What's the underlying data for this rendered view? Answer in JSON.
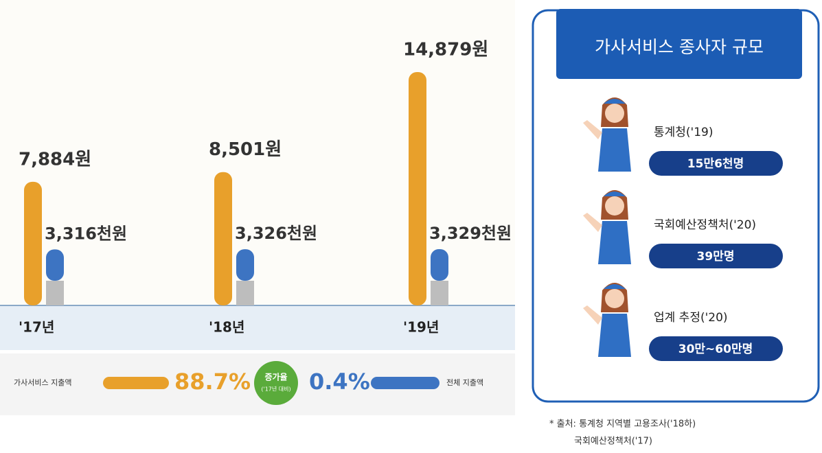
{
  "chart_data": {
    "type": "bar",
    "categories": [
      "'17년",
      "'18년",
      "'19년"
    ],
    "series": [
      {
        "name": "가사서비스 지출액",
        "color": "#e8a02b",
        "values": [
          7884,
          8501,
          14879
        ],
        "value_labels": [
          "7,884원",
          "8,501원",
          "14,879원"
        ]
      },
      {
        "name": "전체 지출액",
        "color": "#3d74c2",
        "values": [
          3316,
          3326,
          3329
        ],
        "value_labels": [
          "3,316천원",
          "3,326천원",
          "3,329천원"
        ]
      }
    ],
    "annotations": [
      "88.7%",
      "증가율",
      "('17년 대비)",
      "0.4%"
    ]
  },
  "panel": {
    "title": "가사서비스 종사자 규모",
    "items": [
      {
        "source": "통계청('19)",
        "value": "15만6천명"
      },
      {
        "source": "국회예산정책처('20)",
        "value": "39만명"
      },
      {
        "source": "업계 추정('20)",
        "value": "30만~60만명"
      }
    ]
  },
  "footnote": [
    "* 출처: 통계청 지역별 고용조사('18하)",
    "국회예산정책처('17)"
  ]
}
